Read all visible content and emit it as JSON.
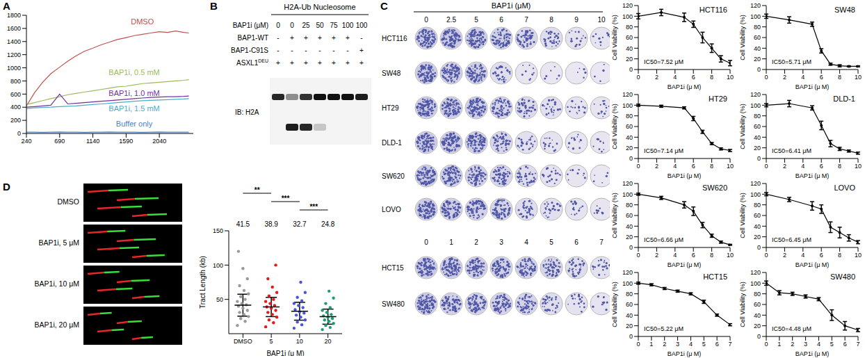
{
  "chart_data": [
    {
      "panel": "A",
      "type": "line",
      "x": [
        240,
        350,
        460,
        570,
        690,
        800,
        910,
        1020,
        1140,
        1250,
        1360,
        1470,
        1590,
        1700,
        1810,
        1920,
        2040,
        2150,
        2260,
        2370,
        2440
      ],
      "xlim": [
        240,
        2500
      ],
      "xticks": [
        240,
        690,
        1140,
        1590,
        2040
      ],
      "ylim": [
        0,
        1800
      ],
      "yticks": [
        0,
        200,
        400,
        600,
        800,
        1000,
        1200,
        1400,
        1600,
        1800
      ],
      "series": [
        {
          "name": "DMSO",
          "color": "#c0504d",
          "values": [
            420,
            620,
            780,
            910,
            1010,
            1100,
            1180,
            1250,
            1300,
            1350,
            1390,
            1430,
            1460,
            1490,
            1510,
            1530,
            1550,
            1540,
            1560,
            1540,
            1530
          ]
        },
        {
          "name": "BAP1i, 0.5 mM",
          "color": "#9bbb59",
          "values": [
            440,
            470,
            500,
            530,
            560,
            590,
            610,
            630,
            650,
            670,
            690,
            710,
            720,
            740,
            760,
            770,
            780,
            790,
            800,
            810,
            820
          ]
        },
        {
          "name": "BAP1i, 1.0 mM",
          "color": "#7030a0",
          "values": [
            400,
            410,
            420,
            430,
            600,
            450,
            460,
            470,
            480,
            490,
            500,
            510,
            520,
            530,
            540,
            550,
            555,
            560,
            560,
            565,
            570
          ]
        },
        {
          "name": "BAP1i, 1.5 mM",
          "color": "#4bacc6",
          "values": [
            380,
            390,
            395,
            400,
            410,
            415,
            420,
            430,
            440,
            450,
            460,
            470,
            480,
            490,
            500,
            505,
            510,
            515,
            520,
            525,
            530
          ]
        },
        {
          "name": "Buffer only",
          "color": "#4f81bd",
          "values": [
            20,
            20,
            18,
            20,
            22,
            20,
            20,
            18,
            20,
            20,
            22,
            20,
            20,
            20,
            18,
            20,
            22,
            20,
            20,
            20,
            20
          ]
        }
      ]
    },
    {
      "type": "line",
      "title": "HCT116",
      "annotation": "IC50=7.52 μM",
      "x": [
        0,
        2.5,
        5,
        6,
        7,
        8,
        9,
        10
      ],
      "values": [
        100,
        107,
        98,
        85,
        60,
        40,
        20,
        12
      ],
      "error": [
        5,
        6,
        8,
        6,
        10,
        8,
        6,
        5
      ],
      "xlim": [
        0,
        10
      ],
      "xticks": [
        0,
        2,
        4,
        6,
        8,
        10
      ],
      "ylim": [
        0,
        120
      ],
      "yticks": [
        0,
        20,
        40,
        60,
        80,
        100,
        120
      ],
      "xlabel": "BAP1i (μ M)",
      "ylabel": "Cell Viability (%)",
      "color": "#000000",
      "marker": "circle"
    },
    {
      "type": "line",
      "title": "SW48",
      "annotation": "IC50=5.71 μM",
      "x": [
        0,
        2.5,
        5,
        6,
        7,
        8,
        9,
        10
      ],
      "values": [
        100,
        93,
        85,
        35,
        10,
        7,
        6,
        6
      ],
      "error": [
        4,
        6,
        4,
        4,
        2,
        2,
        1,
        1
      ],
      "xlim": [
        0,
        10
      ],
      "xticks": [
        0,
        2,
        4,
        6,
        8,
        10
      ],
      "ylim": [
        0,
        120
      ],
      "yticks": [
        0,
        20,
        40,
        60,
        80,
        100,
        120
      ],
      "xlabel": "BAP1i (μ M)",
      "ylabel": "Cell Viability (%)",
      "color": "#000000",
      "marker": "circle"
    },
    {
      "type": "line",
      "title": "HT29",
      "annotation": "IC50=7.14 μM",
      "x": [
        0,
        2.5,
        5,
        6,
        7,
        8,
        9,
        10
      ],
      "values": [
        100,
        98,
        95,
        75,
        50,
        28,
        18,
        15
      ],
      "error": [
        2,
        2,
        2,
        4,
        3,
        2,
        2,
        2
      ],
      "xlim": [
        0,
        10
      ],
      "xticks": [
        0,
        2,
        4,
        6,
        8,
        10
      ],
      "ylim": [
        0,
        120
      ],
      "yticks": [
        0,
        20,
        40,
        60,
        80,
        100,
        120
      ],
      "xlabel": "BAP1i (μ M)",
      "ylabel": "Cell Viability (%)",
      "color": "#000000",
      "marker": "circle"
    },
    {
      "type": "line",
      "title": "DLD-1",
      "annotation": "IC50=6.41 μM",
      "x": [
        0,
        2.5,
        5,
        6,
        7,
        8,
        9,
        10
      ],
      "values": [
        100,
        103,
        95,
        62,
        28,
        18,
        14,
        10
      ],
      "error": [
        3,
        6,
        4,
        8,
        6,
        3,
        2,
        2
      ],
      "xlim": [
        0,
        10
      ],
      "xticks": [
        0,
        2,
        4,
        6,
        8,
        10
      ],
      "ylim": [
        0,
        120
      ],
      "yticks": [
        0,
        20,
        40,
        60,
        80,
        100,
        120
      ],
      "xlabel": "BAP1i (μ M)",
      "ylabel": "Cell Viability (%)",
      "color": "#000000",
      "marker": "circle"
    },
    {
      "type": "line",
      "title": "SW620",
      "annotation": "IC50=6.66 μM",
      "x": [
        0,
        2.5,
        5,
        6,
        7,
        8,
        9,
        10
      ],
      "values": [
        100,
        93,
        80,
        68,
        42,
        22,
        10,
        5
      ],
      "error": [
        2,
        3,
        6,
        8,
        5,
        3,
        2,
        1
      ],
      "xlim": [
        0,
        10
      ],
      "xticks": [
        0,
        2,
        4,
        6,
        8,
        10
      ],
      "ylim": [
        0,
        120
      ],
      "yticks": [
        0,
        20,
        40,
        60,
        80,
        100,
        120
      ],
      "xlabel": "BAP1i (μ M)",
      "ylabel": "Cell Viability (%)",
      "color": "#000000",
      "marker": "circle"
    },
    {
      "type": "line",
      "title": "LOVO",
      "annotation": "IC50=6.45 μM",
      "x": [
        0,
        2.5,
        5,
        6,
        7,
        8,
        9,
        10
      ],
      "values": [
        100,
        90,
        78,
        72,
        38,
        28,
        18,
        10
      ],
      "error": [
        3,
        4,
        8,
        8,
        10,
        10,
        6,
        3
      ],
      "xlim": [
        0,
        10
      ],
      "xticks": [
        0,
        2,
        4,
        6,
        8,
        10
      ],
      "ylim": [
        0,
        120
      ],
      "yticks": [
        0,
        20,
        40,
        60,
        80,
        100,
        120
      ],
      "xlabel": "BAP1i (μ M)",
      "ylabel": "Cell Viability (%)",
      "color": "#000000",
      "marker": "circle"
    },
    {
      "type": "line",
      "title": "HCT15",
      "annotation": "IC50=5.22 μM",
      "x": [
        0,
        1,
        2,
        3,
        4,
        5,
        6,
        7
      ],
      "values": [
        100,
        97,
        90,
        85,
        80,
        65,
        40,
        22
      ],
      "error": [
        2,
        2,
        2,
        2,
        2,
        3,
        2,
        2
      ],
      "xlim": [
        0,
        7
      ],
      "xticks": [
        0,
        1,
        2,
        3,
        4,
        5,
        6,
        7
      ],
      "ylim": [
        0,
        120
      ],
      "yticks": [
        0,
        20,
        40,
        60,
        80,
        100,
        120
      ],
      "xlabel": "BAP1i (μ M)",
      "ylabel": "Cell Viability (%)",
      "color": "#000000",
      "marker": "circle"
    },
    {
      "type": "line",
      "title": "SW480",
      "annotation": "IC50=4.48 μM",
      "x": [
        0,
        1,
        2,
        3,
        4,
        5,
        6,
        7
      ],
      "values": [
        100,
        82,
        80,
        75,
        70,
        40,
        20,
        12
      ],
      "error": [
        4,
        4,
        3,
        3,
        3,
        10,
        8,
        3
      ],
      "xlim": [
        0,
        7
      ],
      "xticks": [
        0,
        1,
        2,
        3,
        4,
        5,
        6,
        7
      ],
      "ylim": [
        0,
        120
      ],
      "yticks": [
        0,
        20,
        40,
        60,
        80,
        100,
        120
      ],
      "xlabel": "BAP1i (μ M)",
      "ylabel": "Cell Viability (%)",
      "color": "#000000",
      "marker": "circle"
    },
    {
      "panel": "D",
      "type": "scatter",
      "categories": [
        "DMSO",
        "5",
        "10",
        "20"
      ],
      "colors": [
        "#9a9a9a",
        "#e31a1c",
        "#4a55d8",
        "#1b9e77"
      ],
      "points": [
        [
          12,
          18,
          22,
          25,
          28,
          31,
          34,
          37,
          40,
          42,
          44,
          47,
          50,
          54,
          58,
          63,
          70,
          80,
          95,
          120
        ],
        [
          10,
          16,
          20,
          24,
          28,
          31,
          34,
          37,
          39,
          41,
          44,
          47,
          50,
          55,
          60,
          68,
          80,
          100
        ],
        [
          8,
          13,
          17,
          20,
          24,
          27,
          30,
          32,
          35,
          38,
          41,
          44,
          48,
          53,
          60,
          75
        ],
        [
          6,
          9,
          12,
          15,
          18,
          20,
          22,
          24,
          26,
          28,
          31,
          34,
          38,
          44,
          52,
          62
        ]
      ],
      "means": [
        41.5,
        38.9,
        32.7,
        24.8
      ],
      "sd": [
        16,
        14,
        13,
        11
      ],
      "data_labels": true,
      "significance": [
        {
          "from": 0,
          "to": 1,
          "label": "**"
        },
        {
          "from": 1,
          "to": 2,
          "label": "***"
        },
        {
          "from": 2,
          "to": 3,
          "label": "***"
        }
      ],
      "ylim": [
        0,
        150
      ],
      "yticks": [
        50,
        100,
        150
      ],
      "xlabel": "BAP1i (μ M)",
      "ylabel": "Tract Length (kb)"
    }
  ],
  "blot": {
    "panel": "B",
    "title": "H2A-Ub Nucleosome",
    "rows": [
      {
        "label": "BAP1i (μM)",
        "values": [
          0,
          0,
          25,
          50,
          75,
          100,
          100
        ]
      },
      {
        "label": "BAP1-WT",
        "values": [
          "-",
          "+",
          "+",
          "+",
          "+",
          "+",
          "-"
        ]
      },
      {
        "label": "BAP1-C91S",
        "values": [
          "-",
          "-",
          "-",
          "-",
          "-",
          "-",
          "+"
        ]
      },
      {
        "label": {
          "text": "ASXL1",
          "sup": "DEU"
        },
        "values": [
          "+",
          "+",
          "+",
          "+",
          "+",
          "+",
          "+"
        ]
      }
    ],
    "antibody": "IB: H2A",
    "band_intensity": [
      [
        0.9,
        0.45,
        0.85,
        1,
        1,
        1,
        0.95
      ],
      [
        0,
        0.95,
        0.9,
        0.2,
        0,
        0,
        0
      ]
    ]
  },
  "colony_assay": {
    "panel": "C",
    "title": "BAP1i (μM)",
    "groups": [
      {
        "concentrations": [
          0,
          2.5,
          5,
          6,
          7,
          8,
          9,
          10
        ],
        "rows": [
          "HCT116",
          "SW48",
          "HT29",
          "DLD-1",
          "SW620",
          "LOVO"
        ]
      },
      {
        "concentrations": [
          0,
          1,
          2,
          3,
          4,
          5,
          6,
          7
        ],
        "rows": [
          "HCT15",
          "SW480"
        ]
      }
    ]
  },
  "fibers": {
    "labels": [
      "DMSO",
      "BAP1i, 5 μM",
      "BAP1i, 10 μM",
      "BAP1i, 20 μM"
    ]
  }
}
